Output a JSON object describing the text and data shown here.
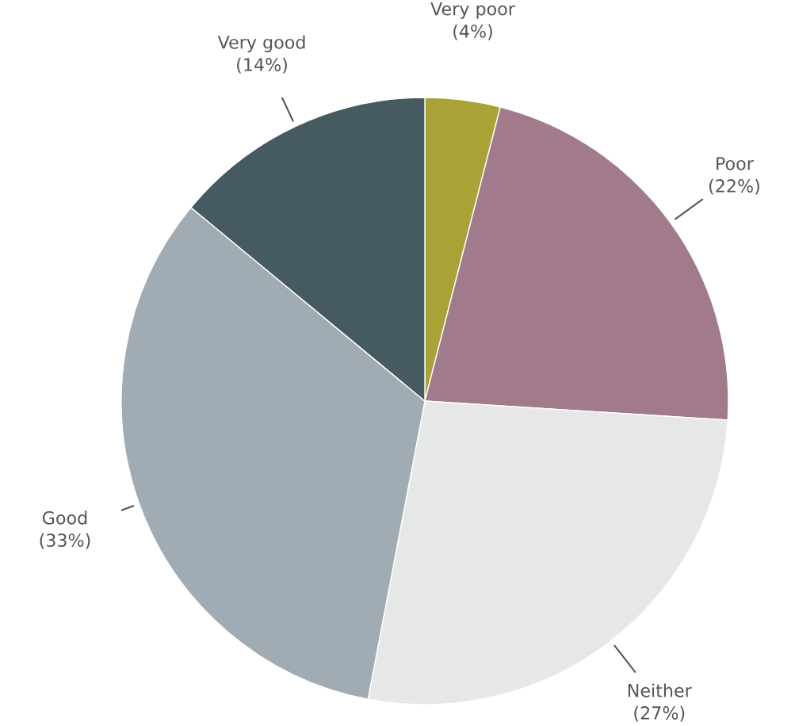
{
  "chart_data": {
    "type": "pie",
    "categories": [
      "Very poor",
      "Poor",
      "Neither",
      "Good",
      "Very good"
    ],
    "values": [
      4,
      22,
      27,
      33,
      14
    ],
    "value_labels": [
      "(4%)",
      "(22%)",
      "(27%)",
      "(33%)",
      "(14%)"
    ],
    "colors": [
      "#a9a236",
      "#a17b8c",
      "#e6e8e8",
      "#a0abb4",
      "#465a61"
    ]
  }
}
